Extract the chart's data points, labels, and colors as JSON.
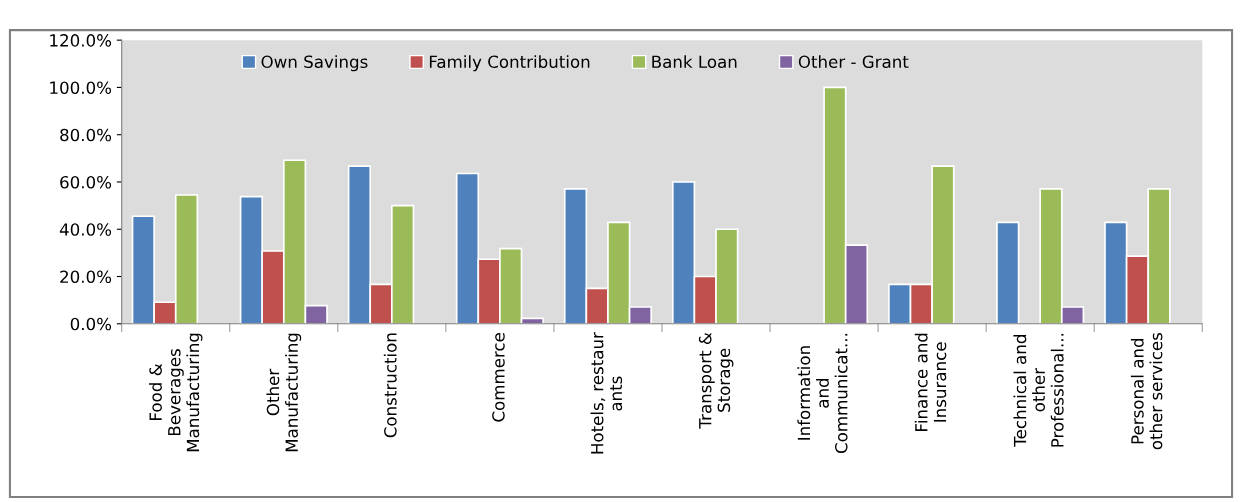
{
  "chart_data": {
    "type": "bar",
    "categories": [
      "Food &\nBeverages\nManufacturing",
      "Other\nManufacturing",
      "Construction",
      "Commerce",
      "Hotels, restaur\nants",
      "Transport &\nStorage",
      "Information\nand\nCommunicat...",
      "Finance and\nInsurance",
      "Technical and\nother\nProfessional...",
      "Personal and\nother services"
    ],
    "series": [
      {
        "name": "Own Savings",
        "color": "#4f81bd",
        "values": [
          45.5,
          53.8,
          66.7,
          63.6,
          57.1,
          60.0,
          null,
          16.7,
          42.9,
          42.9
        ]
      },
      {
        "name": "Family Contribution",
        "color": "#c0504d",
        "values": [
          9.1,
          30.8,
          16.7,
          27.3,
          15.0,
          20.0,
          null,
          16.7,
          null,
          28.6
        ]
      },
      {
        "name": "Bank Loan",
        "color": "#9bbb59",
        "values": [
          54.5,
          69.2,
          50.0,
          31.8,
          42.9,
          40.0,
          100.0,
          66.7,
          57.1,
          57.1
        ]
      },
      {
        "name": "Other - Grant",
        "color": "#8064a2",
        "values": [
          null,
          7.7,
          null,
          2.3,
          7.1,
          null,
          33.3,
          null,
          7.1,
          null
        ]
      }
    ],
    "ylim": [
      0,
      120
    ],
    "yticks": [
      {
        "value": 0,
        "label": "0.0%"
      },
      {
        "value": 20,
        "label": "20.0%"
      },
      {
        "value": 40,
        "label": "40.0%"
      },
      {
        "value": 60,
        "label": "60.0%"
      },
      {
        "value": 80,
        "label": "80.0%"
      },
      {
        "value": 100,
        "label": "100.0%"
      },
      {
        "value": 120,
        "label": "120.0%"
      }
    ],
    "legend": "top",
    "grid": false
  }
}
